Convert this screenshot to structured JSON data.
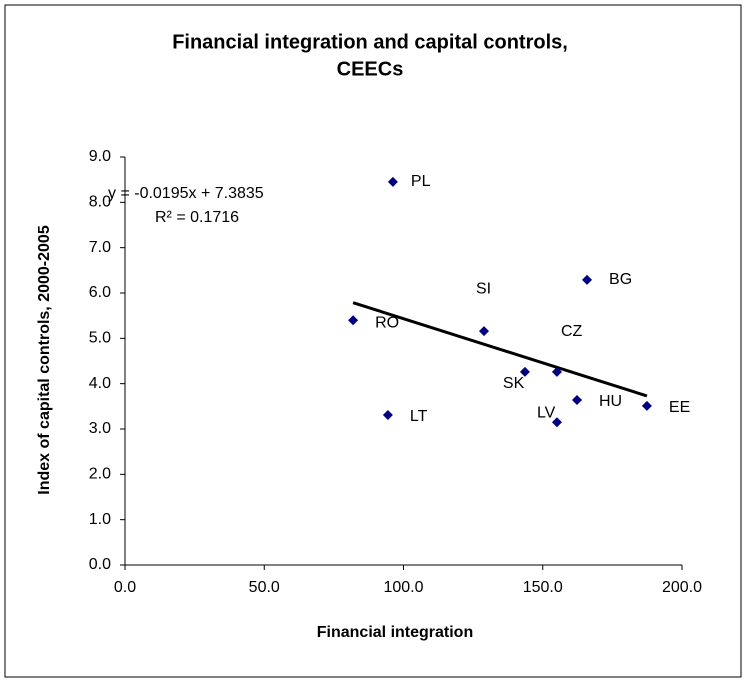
{
  "chart_data": {
    "type": "scatter",
    "title": [
      "Financial integration and capital controls,",
      "CEECs"
    ],
    "x_label": "Financial integration",
    "y_label": "Index of capital controls, 2000-2005",
    "series": [
      {
        "color": "#000080",
        "labels": [
          "PL",
          "BG",
          "RO",
          "SI",
          "CZ",
          "SK",
          "HU",
          "EE",
          "LT",
          "LV"
        ],
        "x": [
          96.2,
          165.9,
          81.9,
          128.9,
          155.1,
          143.6,
          162.3,
          187.4,
          94.4,
          155.1
        ],
        "values": [
          8.45,
          6.29,
          5.4,
          5.16,
          4.26,
          4.26,
          3.64,
          3.51,
          3.31,
          3.15
        ]
      }
    ],
    "trendline": {
      "slope": -0.0195,
      "intercept": 7.3835,
      "color": "#000000",
      "equation": "y = -0.0195x + 7.3835",
      "r_squared": "R² = 0.1716"
    },
    "xlim": [
      0,
      200
    ],
    "xticks": [
      {
        "value": 0,
        "label": "0.0"
      },
      {
        "value": 50,
        "label": "50.0"
      },
      {
        "value": 100,
        "label": "100.0"
      },
      {
        "value": 150,
        "label": "150.0"
      },
      {
        "value": 200,
        "label": "200.0"
      }
    ],
    "ylim": [
      0,
      9
    ],
    "yticks": [
      {
        "value": 0,
        "label": "0.0"
      },
      {
        "value": 1,
        "label": "1.0"
      },
      {
        "value": 2,
        "label": "2.0"
      },
      {
        "value": 3,
        "label": "3.0"
      },
      {
        "value": 4,
        "label": "4.0"
      },
      {
        "value": 5,
        "label": "5.0"
      },
      {
        "value": 6,
        "label": "6.0"
      },
      {
        "value": 7,
        "label": "7.0"
      },
      {
        "value": 8,
        "label": "8.0"
      },
      {
        "value": 9,
        "label": "9.0"
      }
    ],
    "grid": false
  }
}
